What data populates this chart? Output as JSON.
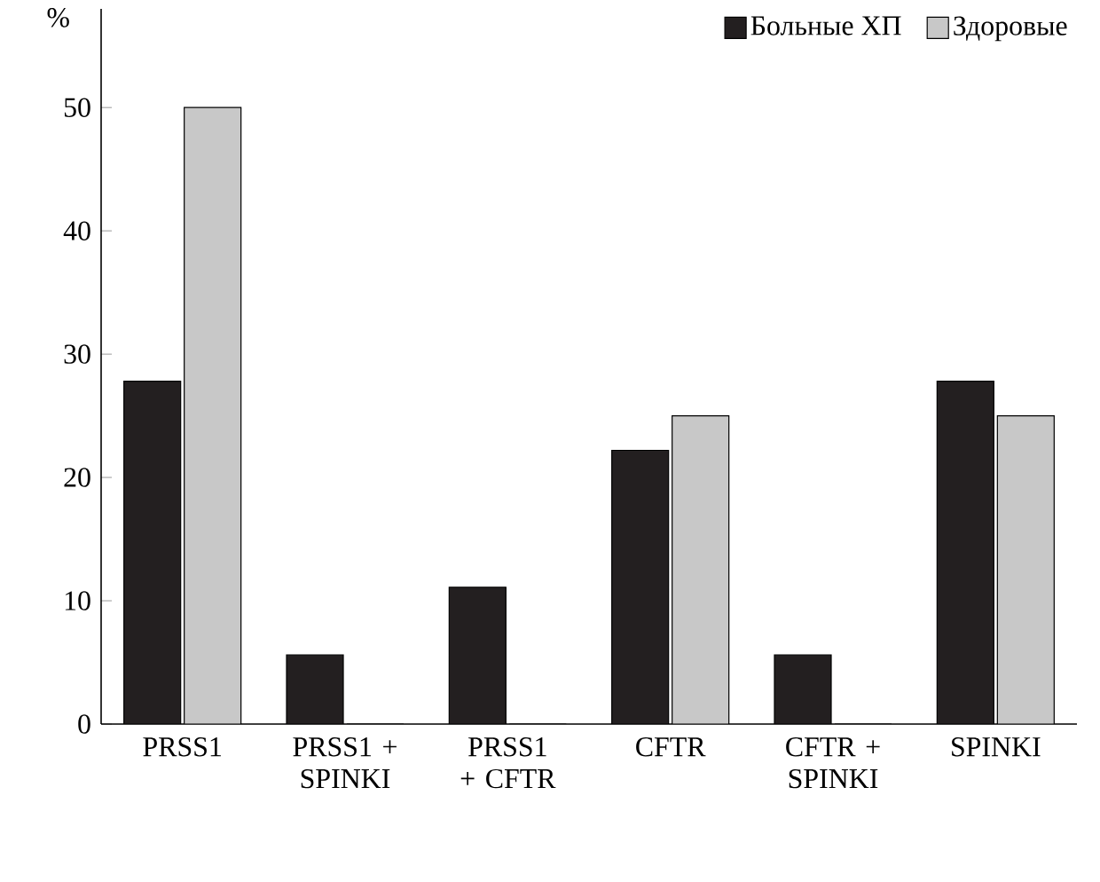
{
  "chart_data": {
    "type": "bar",
    "ylabel": "%",
    "categories": [
      "PRSS1",
      "PRSS1 + SPINKI",
      "PRSS1 + CFTR",
      "CFTR",
      "CFTR + SPINKI",
      "SPINKI"
    ],
    "series": [
      {
        "name": "Больные ХП",
        "color": "#231f20",
        "values": [
          27.8,
          5.6,
          11.1,
          22.2,
          5.6,
          27.8
        ]
      },
      {
        "name": "Здоровые",
        "color": "#c8c8c8",
        "values": [
          50,
          0,
          0,
          25,
          0,
          25
        ]
      }
    ],
    "ylim": [
      0,
      58
    ],
    "yticks": [
      0,
      10,
      20,
      30,
      40,
      50
    ],
    "legend": "top right",
    "grid": false
  }
}
